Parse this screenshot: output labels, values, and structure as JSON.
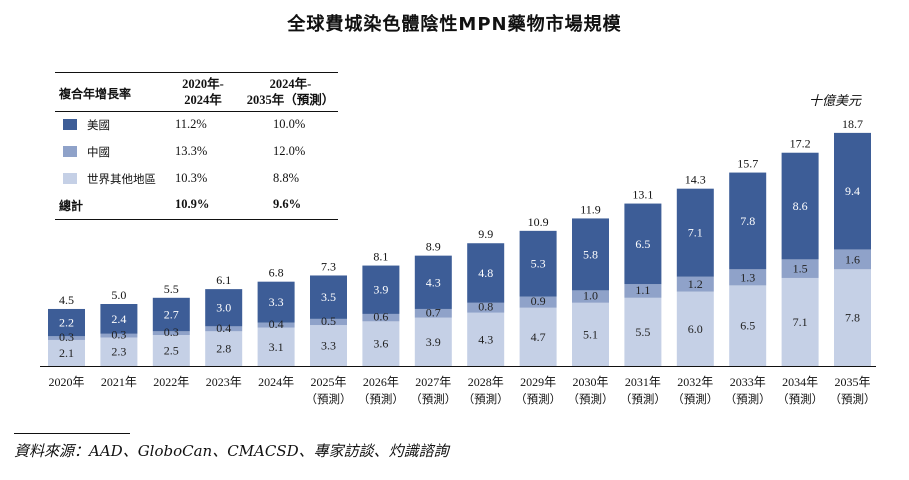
{
  "title": "全球費城染色體陰性MPN藥物市場規模",
  "unit": "十億美元",
  "legend": {
    "header": {
      "label": "複合年增長率",
      "col1": "2020年-\n2024年",
      "col2": "2024年-\n2035年（預測）"
    },
    "rows": [
      {
        "name": "美國",
        "c1": "11.2%",
        "c2": "10.0%",
        "color": "#3d5d97"
      },
      {
        "name": "中國",
        "c1": "13.3%",
        "c2": "12.0%",
        "color": "#8fa2c9"
      },
      {
        "name": "世界其他地區",
        "c1": "10.3%",
        "c2": "8.8%",
        "color": "#c5d0e6"
      }
    ],
    "total": {
      "name": "總計",
      "c1": "10.9%",
      "c2": "9.6%"
    }
  },
  "source": "資料來源：AAD、GloboCan、CMACSD、專家訪談、灼識諮詢",
  "chart_data": {
    "type": "bar",
    "stacked": true,
    "categories": [
      "2020年",
      "2021年",
      "2022年",
      "2023年",
      "2024年",
      "2025年",
      "2026年",
      "2027年",
      "2028年",
      "2029年",
      "2030年",
      "2031年",
      "2032年",
      "2033年",
      "2034年",
      "2035年"
    ],
    "forecast_label": "（預測）",
    "forecast_from_index": 5,
    "series": [
      {
        "name": "世界其他地區",
        "color": "#c5d0e6",
        "values": [
          2.1,
          2.3,
          2.5,
          2.8,
          3.1,
          3.3,
          3.6,
          3.9,
          4.3,
          4.7,
          5.1,
          5.5,
          6.0,
          6.5,
          7.1,
          7.8
        ]
      },
      {
        "name": "中國",
        "color": "#8fa2c9",
        "values": [
          0.3,
          0.3,
          0.3,
          0.4,
          0.4,
          0.5,
          0.6,
          0.7,
          0.8,
          0.9,
          1.0,
          1.1,
          1.2,
          1.3,
          1.5,
          1.6
        ]
      },
      {
        "name": "美國",
        "color": "#3d5d97",
        "values": [
          2.2,
          2.4,
          2.7,
          3.0,
          3.3,
          3.5,
          3.9,
          4.3,
          4.8,
          5.3,
          5.8,
          6.5,
          7.1,
          7.8,
          8.6,
          9.4
        ]
      }
    ],
    "totals": [
      4.5,
      5.0,
      5.5,
      6.1,
      6.8,
      7.3,
      8.1,
      8.9,
      9.9,
      10.9,
      11.9,
      13.1,
      14.3,
      15.7,
      17.2,
      18.7
    ],
    "ylim": [
      0,
      20
    ]
  }
}
